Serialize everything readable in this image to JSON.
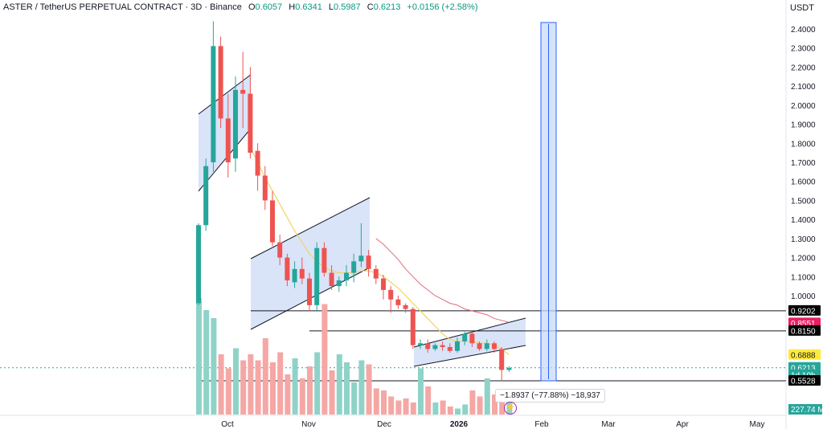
{
  "header": {
    "symbol": "ASTER / TetherUS PERPETUAL CONTRACT · 3D · Binance",
    "o_label": "O",
    "o_value": "0.6057",
    "h_label": "H",
    "h_value": "0.6341",
    "l_label": "L",
    "l_value": "0.5987",
    "c_label": "C",
    "c_value": "0.6213",
    "change": "+0.0156 (+2.58%)"
  },
  "price_unit": "USDT",
  "colors": {
    "up": "#26a69a",
    "down": "#ef5350",
    "vol_up": "#8fd3c8",
    "vol_down": "#f5a7a5",
    "channel_fill": "#c9d9f7",
    "ma_fast": "#f4d35e",
    "ma_slow": "#e06c7a",
    "projection": "#2962ff"
  },
  "price_tags": [
    {
      "value": "0.9202",
      "color": "#000000",
      "y": 0.9202
    },
    {
      "value": "0.8551",
      "color": "#e91e63",
      "y": 0.8551
    },
    {
      "value": "0.8150",
      "color": "#000000",
      "y": 0.815
    },
    {
      "value": "0.6888",
      "color": "#ffeb3b",
      "y": 0.6888,
      "text_color": "#131722"
    },
    {
      "value": "0.6213",
      "color": "#26a69a",
      "y": 0.6213
    },
    {
      "value": "1d 10h",
      "color": "#26a69a",
      "y": 0.583
    },
    {
      "value": "0.5528",
      "color": "#000000",
      "y": 0.5528
    }
  ],
  "volume_tag": "227.74 M",
  "measure_label": "−1.8937 (−77.88%) −18,937",
  "chart_data": {
    "type": "candlestick",
    "title": "",
    "x_ticks": [
      "Oct",
      "Nov",
      "Dec",
      "2026",
      "Feb",
      "Mar",
      "Apr",
      "May"
    ],
    "y_ticks": [
      1.0,
      1.1,
      1.2,
      1.3,
      1.4,
      1.5,
      1.6,
      1.7,
      1.8,
      1.9,
      2.0,
      2.1,
      2.2,
      2.3,
      2.4
    ],
    "ylim": [
      0.52,
      2.46
    ],
    "grid": false,
    "candles": [
      {
        "o": 0.96,
        "h": 1.38,
        "l": 0.95,
        "c": 1.37
      },
      {
        "o": 1.37,
        "h": 1.72,
        "l": 1.34,
        "c": 1.68
      },
      {
        "o": 1.7,
        "h": 2.44,
        "l": 1.65,
        "c": 2.31
      },
      {
        "o": 2.31,
        "h": 2.36,
        "l": 1.88,
        "c": 1.93
      },
      {
        "o": 1.93,
        "h": 2.06,
        "l": 1.62,
        "c": 1.7
      },
      {
        "o": 1.72,
        "h": 2.15,
        "l": 1.65,
        "c": 2.08
      },
      {
        "o": 2.08,
        "h": 2.28,
        "l": 1.88,
        "c": 2.06
      },
      {
        "o": 2.06,
        "h": 2.2,
        "l": 1.72,
        "c": 1.75
      },
      {
        "o": 1.76,
        "h": 1.8,
        "l": 1.55,
        "c": 1.63
      },
      {
        "o": 1.63,
        "h": 1.68,
        "l": 1.45,
        "c": 1.5
      },
      {
        "o": 1.5,
        "h": 1.55,
        "l": 1.26,
        "c": 1.28
      },
      {
        "o": 1.28,
        "h": 1.32,
        "l": 1.16,
        "c": 1.2
      },
      {
        "o": 1.2,
        "h": 1.22,
        "l": 1.05,
        "c": 1.08
      },
      {
        "o": 1.07,
        "h": 1.18,
        "l": 1.04,
        "c": 1.14
      },
      {
        "o": 1.14,
        "h": 1.2,
        "l": 1.06,
        "c": 1.09
      },
      {
        "o": 1.09,
        "h": 1.12,
        "l": 0.92,
        "c": 0.95
      },
      {
        "o": 0.95,
        "h": 1.28,
        "l": 0.92,
        "c": 1.25
      },
      {
        "o": 1.25,
        "h": 1.28,
        "l": 1.1,
        "c": 1.12
      },
      {
        "o": 1.12,
        "h": 1.16,
        "l": 1.03,
        "c": 1.05
      },
      {
        "o": 1.05,
        "h": 1.1,
        "l": 1.02,
        "c": 1.08
      },
      {
        "o": 1.08,
        "h": 1.16,
        "l": 1.05,
        "c": 1.12
      },
      {
        "o": 1.12,
        "h": 1.22,
        "l": 1.07,
        "c": 1.18
      },
      {
        "o": 1.18,
        "h": 1.38,
        "l": 1.15,
        "c": 1.21
      },
      {
        "o": 1.21,
        "h": 1.24,
        "l": 1.1,
        "c": 1.14
      },
      {
        "o": 1.14,
        "h": 1.16,
        "l": 1.06,
        "c": 1.09
      },
      {
        "o": 1.09,
        "h": 1.11,
        "l": 0.98,
        "c": 1.03
      },
      {
        "o": 1.03,
        "h": 1.05,
        "l": 0.91,
        "c": 0.98
      },
      {
        "o": 0.98,
        "h": 1.0,
        "l": 0.93,
        "c": 0.95
      },
      {
        "o": 0.95,
        "h": 0.96,
        "l": 0.91,
        "c": 0.93
      },
      {
        "o": 0.93,
        "h": 0.94,
        "l": 0.72,
        "c": 0.74
      },
      {
        "o": 0.74,
        "h": 0.77,
        "l": 0.72,
        "c": 0.75
      },
      {
        "o": 0.75,
        "h": 0.77,
        "l": 0.7,
        "c": 0.72
      },
      {
        "o": 0.72,
        "h": 0.75,
        "l": 0.71,
        "c": 0.74
      },
      {
        "o": 0.74,
        "h": 0.76,
        "l": 0.71,
        "c": 0.73
      },
      {
        "o": 0.73,
        "h": 0.75,
        "l": 0.7,
        "c": 0.71
      },
      {
        "o": 0.71,
        "h": 0.78,
        "l": 0.7,
        "c": 0.76
      },
      {
        "o": 0.76,
        "h": 0.81,
        "l": 0.74,
        "c": 0.8
      },
      {
        "o": 0.8,
        "h": 0.81,
        "l": 0.73,
        "c": 0.75
      },
      {
        "o": 0.75,
        "h": 0.76,
        "l": 0.71,
        "c": 0.72
      },
      {
        "o": 0.72,
        "h": 0.77,
        "l": 0.71,
        "c": 0.75
      },
      {
        "o": 0.75,
        "h": 0.76,
        "l": 0.7,
        "c": 0.72
      },
      {
        "o": 0.72,
        "h": 0.73,
        "l": 0.55,
        "c": 0.61
      },
      {
        "o": 0.61,
        "h": 0.63,
        "l": 0.6,
        "c": 0.62
      }
    ],
    "volumes": [
      0.58,
      0.52,
      0.48,
      0.3,
      0.23,
      0.33,
      0.27,
      0.3,
      0.27,
      0.38,
      0.26,
      0.31,
      0.2,
      0.28,
      0.18,
      0.24,
      0.31,
      0.55,
      0.22,
      0.3,
      0.26,
      0.16,
      0.27,
      0.25,
      0.13,
      0.12,
      0.09,
      0.07,
      0.08,
      0.06,
      0.23,
      0.14,
      0.06,
      0.07,
      0.04,
      0.03,
      0.05,
      0.12,
      0.09,
      0.18,
      0.1,
      0.08,
      0.06
    ],
    "ma_fast": [
      null,
      null,
      null,
      null,
      null,
      null,
      null,
      1.78,
      1.7,
      1.62,
      1.55,
      1.48,
      1.41,
      1.34,
      1.28,
      1.22,
      1.18,
      1.15,
      1.13,
      1.12,
      1.12,
      1.12,
      1.13,
      1.13,
      1.12,
      1.1,
      1.07,
      1.04,
      1.0,
      0.96,
      0.92,
      0.88,
      0.84,
      0.8,
      0.77,
      0.76,
      0.76,
      0.76,
      0.75,
      0.75,
      0.74,
      0.72,
      0.69
    ],
    "ma_slow": [
      null,
      null,
      null,
      null,
      null,
      null,
      null,
      null,
      null,
      null,
      null,
      null,
      null,
      null,
      null,
      null,
      null,
      null,
      null,
      null,
      null,
      null,
      null,
      null,
      1.3,
      1.27,
      1.23,
      1.19,
      1.14,
      1.1,
      1.06,
      1.03,
      1.0,
      0.98,
      0.96,
      0.95,
      0.93,
      0.92,
      0.91,
      0.9,
      0.88,
      0.87,
      0.86
    ]
  }
}
